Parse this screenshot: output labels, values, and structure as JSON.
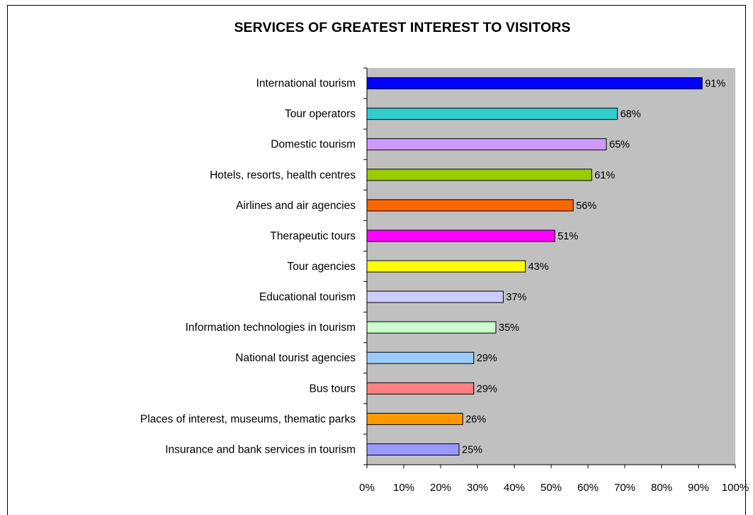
{
  "chart_data": {
    "type": "bar",
    "orientation": "horizontal",
    "title": "SERVICES OF GREATEST INTEREST TO VISITORS",
    "categories": [
      "International tourism",
      "Tour operators",
      "Domestic tourism",
      "Hotels, resorts, health centres",
      "Airlines and air agencies",
      "Therapeutic tours",
      "Tour agencies",
      "Educational tourism",
      "Information technologies in tourism",
      "National tourist agencies",
      "Bus tours",
      "Places of interest, museums, thematic parks",
      "Insurance and bank services in tourism"
    ],
    "values": [
      91,
      68,
      65,
      61,
      56,
      51,
      43,
      37,
      35,
      29,
      29,
      26,
      25
    ],
    "value_labels": [
      "91%",
      "68%",
      "65%",
      "61%",
      "56%",
      "51%",
      "43%",
      "37%",
      "35%",
      "29%",
      "29%",
      "26%",
      "25%"
    ],
    "bar_colors": [
      "#0000ff",
      "#33cccc",
      "#cc99ff",
      "#99cc00",
      "#ff6600",
      "#ff00ff",
      "#ffff00",
      "#ccccff",
      "#ccffcc",
      "#99ccff",
      "#ff8080",
      "#ff9900",
      "#9999ff"
    ],
    "xlim": [
      0,
      100
    ],
    "x_ticks": [
      0,
      10,
      20,
      30,
      40,
      50,
      60,
      70,
      80,
      90,
      100
    ],
    "x_tick_labels": [
      "0%",
      "10%",
      "20%",
      "30%",
      "40%",
      "50%",
      "60%",
      "70%",
      "80%",
      "90%",
      "100%"
    ],
    "plot_background": "#c0c0c0",
    "grid": false,
    "legend": "none"
  }
}
